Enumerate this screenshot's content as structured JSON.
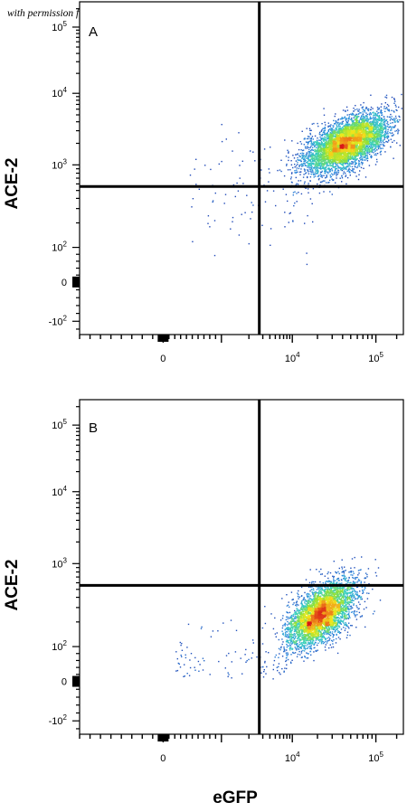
{
  "watermark": "with permission from R&D Systems",
  "xlabel": "eGFP",
  "chart_data": [
    {
      "type": "scatter",
      "panel_label": "A",
      "ylabel": "ACE-2",
      "xlabel": "eGFP",
      "x_scale": "biexponential",
      "y_scale": "biexponential",
      "xlim": [
        -800,
        250000
      ],
      "ylim": [
        -250,
        260000
      ],
      "x_ticks": [
        {
          "value": 0,
          "base": "0",
          "exp": ""
        },
        {
          "value": 10000,
          "base": "10",
          "exp": "4"
        },
        {
          "value": 100000,
          "base": "10",
          "exp": "5"
        }
      ],
      "y_ticks": [
        {
          "value": -100,
          "base": "-10",
          "exp": "2"
        },
        {
          "value": 0,
          "base": "0",
          "exp": ""
        },
        {
          "value": 100,
          "base": "10",
          "exp": "2"
        },
        {
          "value": 1000,
          "base": "10",
          "exp": "3"
        },
        {
          "value": 10000,
          "base": "10",
          "exp": "4"
        },
        {
          "value": 100000,
          "base": "10",
          "exp": "5"
        }
      ],
      "quadrant_gate": {
        "x": 2600,
        "y": 560
      },
      "population": {
        "center_x": 45000,
        "center_y": 2000,
        "spread_x_decades": 0.25,
        "spread_y_decades": 0.2,
        "tilt": 0.6,
        "events": 5200
      },
      "grid": false,
      "colormap": [
        "#1a2fa8",
        "#2f8fe0",
        "#38d0c0",
        "#8ee03a",
        "#f0e81c",
        "#f08a1a",
        "#d81818"
      ]
    },
    {
      "type": "scatter",
      "panel_label": "B",
      "ylabel": "ACE-2",
      "xlabel": "eGFP",
      "x_scale": "biexponential",
      "y_scale": "biexponential",
      "xlim": [
        -800,
        250000
      ],
      "ylim": [
        -250,
        260000
      ],
      "x_ticks": [
        {
          "value": 0,
          "base": "0",
          "exp": ""
        },
        {
          "value": 10000,
          "base": "10",
          "exp": "4"
        },
        {
          "value": 100000,
          "base": "10",
          "exp": "5"
        }
      ],
      "y_ticks": [
        {
          "value": -100,
          "base": "-10",
          "exp": "2"
        },
        {
          "value": 0,
          "base": "0",
          "exp": ""
        },
        {
          "value": 100,
          "base": "10",
          "exp": "2"
        },
        {
          "value": 1000,
          "base": "10",
          "exp": "3"
        },
        {
          "value": 10000,
          "base": "10",
          "exp": "4"
        },
        {
          "value": 100000,
          "base": "10",
          "exp": "5"
        }
      ],
      "quadrant_gate": {
        "x": 2600,
        "y": 560
      },
      "population": {
        "center_x": 22000,
        "center_y": 250,
        "spread_x_decades": 0.2,
        "spread_y_decades": 0.2,
        "tilt": 0.55,
        "events": 4200
      },
      "grid": false,
      "colormap": [
        "#1a2fa8",
        "#2f8fe0",
        "#38d0c0",
        "#8ee03a",
        "#f0e81c",
        "#f08a1a",
        "#d81818"
      ]
    }
  ]
}
